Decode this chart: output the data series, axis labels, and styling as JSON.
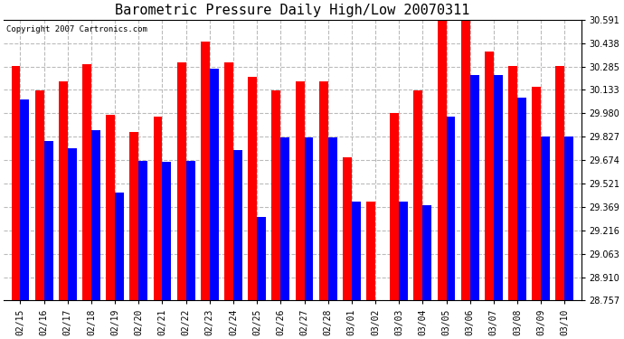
{
  "title": "Barometric Pressure Daily High/Low 20070311",
  "copyright": "Copyright 2007 Cartronics.com",
  "dates": [
    "02/15",
    "02/16",
    "02/17",
    "02/18",
    "02/19",
    "02/20",
    "02/21",
    "02/22",
    "02/23",
    "02/24",
    "02/25",
    "02/26",
    "02/27",
    "02/28",
    "03/01",
    "03/02",
    "03/03",
    "03/04",
    "03/05",
    "03/06",
    "03/07",
    "03/08",
    "03/09",
    "03/10"
  ],
  "highs": [
    30.29,
    30.13,
    30.19,
    30.3,
    29.97,
    29.86,
    29.96,
    30.31,
    30.45,
    30.31,
    30.22,
    30.13,
    30.19,
    30.19,
    29.69,
    29.4,
    29.98,
    30.13,
    30.59,
    30.59,
    30.38,
    30.29,
    30.15,
    30.29
  ],
  "lows": [
    30.07,
    29.8,
    29.75,
    29.87,
    29.46,
    29.67,
    29.66,
    29.67,
    30.27,
    29.74,
    29.3,
    29.82,
    29.82,
    29.82,
    29.4,
    28.76,
    29.4,
    29.38,
    29.96,
    30.23,
    30.23,
    30.08,
    29.83,
    29.83
  ],
  "ylim_min": 28.757,
  "ylim_max": 30.591,
  "yticks": [
    28.757,
    28.91,
    29.063,
    29.216,
    29.369,
    29.521,
    29.674,
    29.827,
    29.98,
    30.133,
    30.285,
    30.438,
    30.591
  ],
  "bar_width": 0.38,
  "high_color": "#ff0000",
  "low_color": "#0000ff",
  "bg_color": "#ffffff",
  "grid_color": "#bbbbbb",
  "title_fontsize": 11,
  "tick_fontsize": 7,
  "copyright_fontsize": 6.5
}
